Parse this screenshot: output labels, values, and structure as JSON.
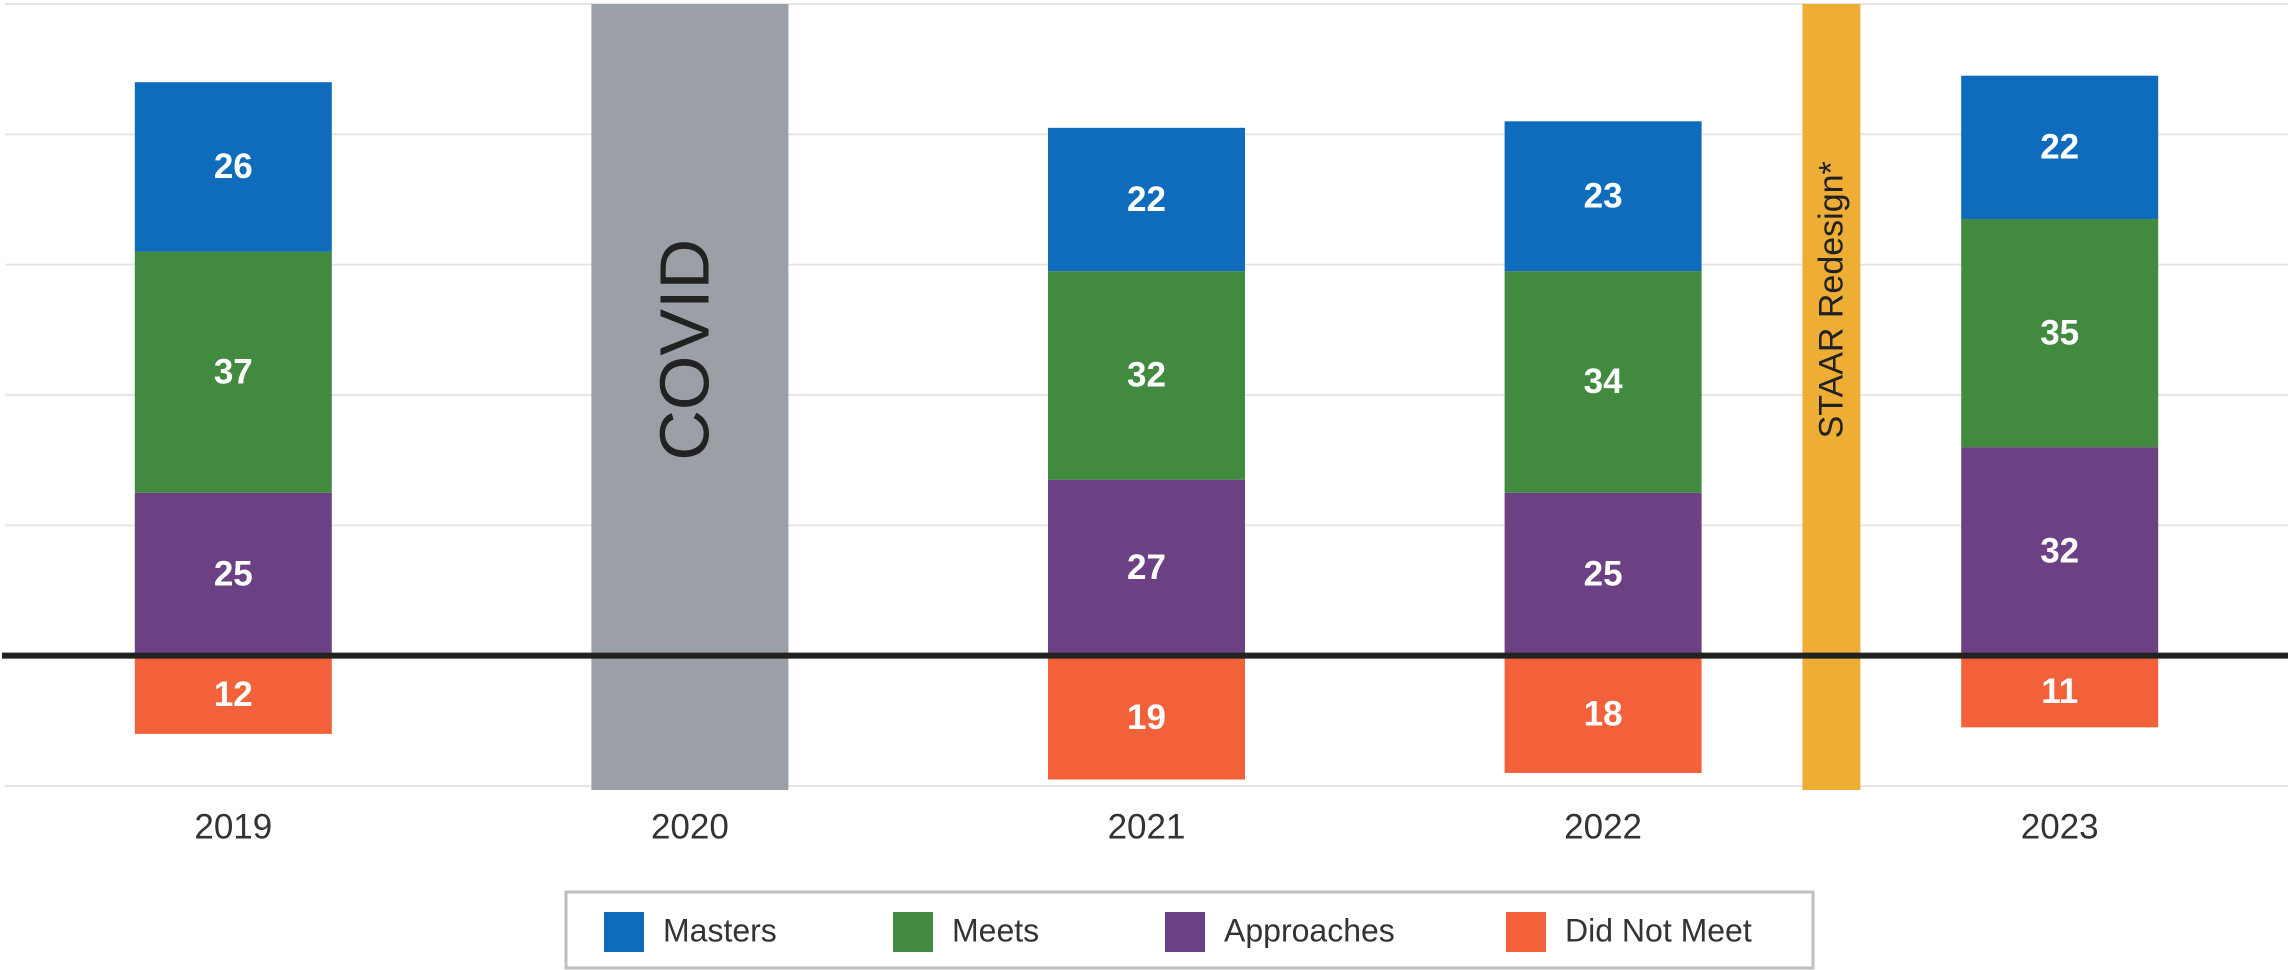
{
  "chart_data": {
    "type": "stacked_bar",
    "categories": [
      "2019",
      "2020",
      "2021",
      "2022",
      "2023"
    ],
    "series": [
      {
        "name": "Masters",
        "color": "#0f6cbd",
        "values": [
          26,
          null,
          22,
          23,
          22
        ]
      },
      {
        "name": "Meets",
        "color": "#418a3f",
        "values": [
          37,
          null,
          32,
          34,
          35
        ]
      },
      {
        "name": "Approaches",
        "color": "#6c4183",
        "values": [
          25,
          null,
          27,
          25,
          32
        ]
      },
      {
        "name": "Did Not Meet",
        "color": "#f2613a",
        "values": [
          -12,
          null,
          -19,
          -18,
          -11
        ],
        "value_labels": [
          "12",
          null,
          "19",
          "18",
          "11"
        ]
      }
    ],
    "ylim": [
      -20,
      100
    ],
    "yticks": [
      -20,
      0,
      20,
      40,
      60,
      80,
      100
    ],
    "grid": true,
    "annotations": [
      {
        "text": "COVID",
        "color": "#9aa0a6",
        "category": "2020"
      },
      {
        "text": "STAAR Redesign*",
        "color": "#eeae35"
      }
    ],
    "legend": "bottom"
  }
}
